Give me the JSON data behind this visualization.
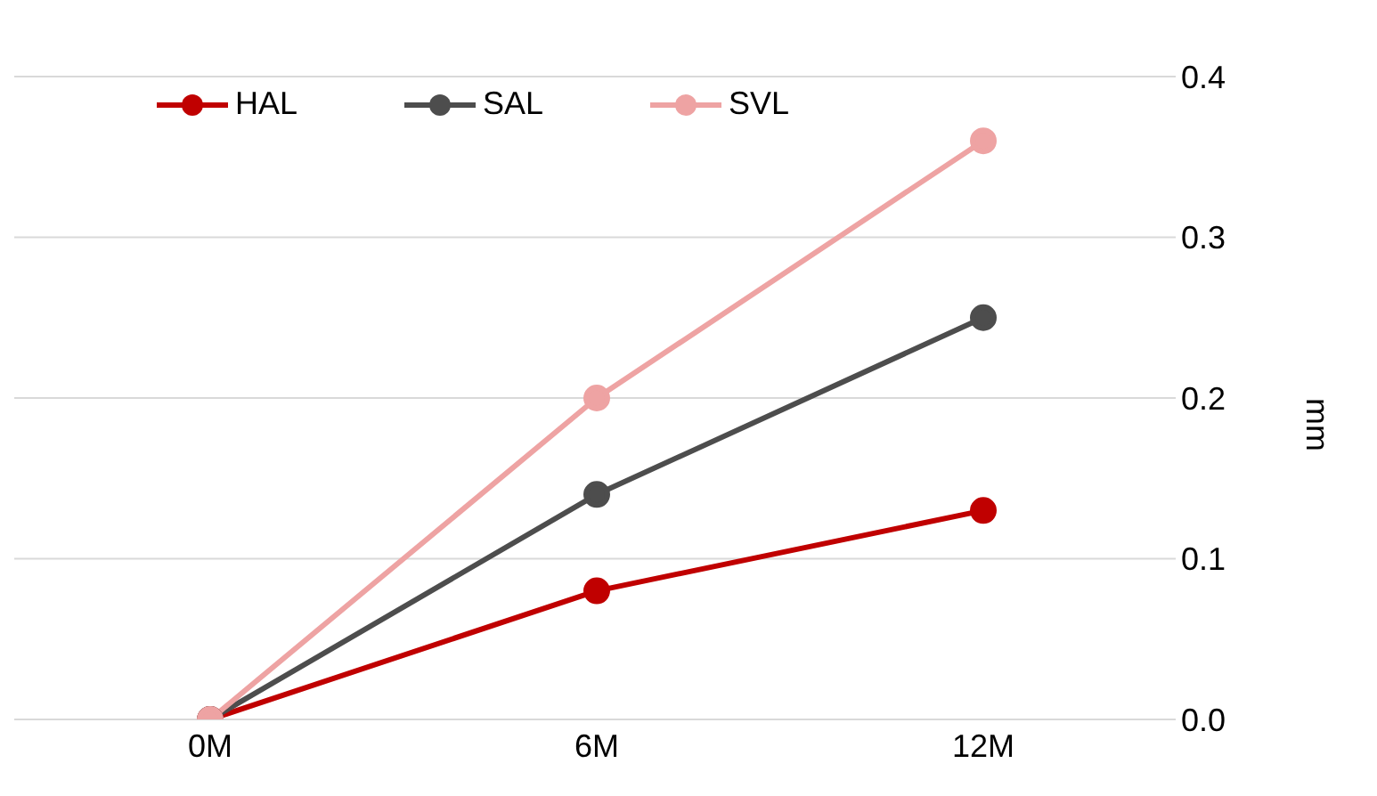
{
  "chart_data": {
    "type": "line",
    "categories": [
      "0M",
      "6M",
      "12M"
    ],
    "ylabel": "mm",
    "ylim": [
      0,
      0.4
    ],
    "yticks": [
      {
        "value": 0,
        "label": "0.0"
      },
      {
        "value": 0.1,
        "label": "0.1"
      },
      {
        "value": 0.2,
        "label": "0.2"
      },
      {
        "value": 0.3,
        "label": "0.3"
      },
      {
        "value": 0.4,
        "label": "0.4"
      }
    ],
    "grid": "y",
    "legend": "top left",
    "marker": "circle",
    "line_style": "solid",
    "series": [
      {
        "name": "HAL",
        "color": "#c00000",
        "values": [
          0,
          0.08,
          0.13
        ]
      },
      {
        "name": "SAL",
        "color": "#4d4d4d",
        "values": [
          0,
          0.14,
          0.25
        ]
      },
      {
        "name": "SVL",
        "color": "#eea3a3",
        "values": [
          0,
          0.2,
          0.36
        ]
      }
    ]
  }
}
